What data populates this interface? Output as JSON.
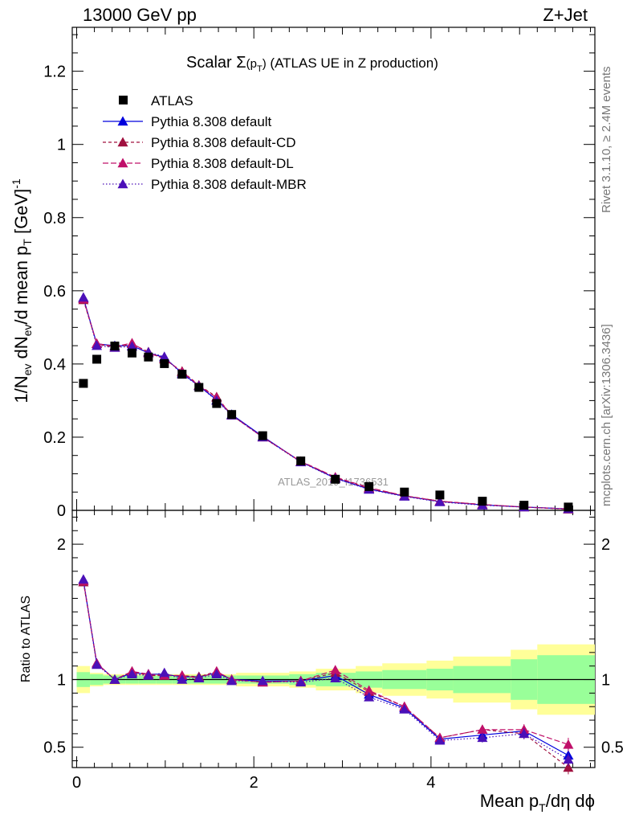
{
  "header": {
    "left": "13000 GeV pp",
    "right": "Z+Jet"
  },
  "plot_title": {
    "text_main": "Scalar ",
    "sigma": "Σ",
    "p_open": "(p",
    "p_sub": "T",
    "p_close": ")",
    "suffix": " (ATLAS UE in Z production)"
  },
  "side_labels": {
    "rivet": "Rivet 3.1.10, ≥ 2.4M events",
    "mcplots": "mcplots.cern.ch [arXiv:1306.3436]"
  },
  "watermark": "ATLAS_2019_I1736531",
  "axes": {
    "ylabel_main": {
      "p1": "1/N",
      "s1": "ev",
      "p2": " dN",
      "s2": "ev",
      "p3": "/d mean p",
      "s3": "T",
      "p4": " [GeV]",
      "sup": "-1"
    },
    "ylabel_ratio": "Ratio to ATLAS",
    "xlabel": {
      "p1": "Mean p",
      "s1": "T",
      "p2": "/dη dϕ"
    }
  },
  "legend": [
    {
      "label": "ATLAS",
      "marker": "square",
      "color": "#000000",
      "dash": ""
    },
    {
      "label": "Pythia 8.308 default",
      "marker": "triangle",
      "color": "#0000dd",
      "dash": ""
    },
    {
      "label": "Pythia 8.308 default-CD",
      "marker": "triangle",
      "color": "#a0103f",
      "dash": "4,3"
    },
    {
      "label": "Pythia 8.308 default-DL",
      "marker": "triangle",
      "color": "#c0106a",
      "dash": "7,3"
    },
    {
      "label": "Pythia 8.308 default-MBR",
      "marker": "triangle",
      "color": "#4b10b8",
      "dash": "1.5,2.5"
    }
  ],
  "chart_data": {
    "type": "scatter",
    "x_axis": {
      "range": [
        -0.05,
        5.85
      ],
      "ticks": [
        0,
        2,
        4
      ],
      "tick_labels": [
        "0",
        "2",
        "4"
      ]
    },
    "main_y_axis": {
      "range": [
        0,
        1.32
      ],
      "ticks": [
        0,
        0.2,
        0.4,
        0.6,
        0.8,
        1.0,
        1.2
      ],
      "tick_labels": [
        "0",
        "0.2",
        "0.4",
        "0.6",
        "0.8",
        "1",
        "1.2"
      ]
    },
    "ratio_y_axis": {
      "range": [
        0.35,
        2.25
      ],
      "ticks": [
        0.5,
        1,
        2
      ],
      "tick_labels": [
        "0.5",
        "1",
        "2"
      ]
    },
    "x": [
      0.076,
      0.227,
      0.43,
      0.625,
      0.81,
      0.99,
      1.19,
      1.38,
      1.58,
      1.75,
      2.1,
      2.53,
      2.92,
      3.3,
      3.7,
      4.1,
      4.58,
      5.05,
      5.55
    ],
    "bin_edges": [
      0.0,
      0.15,
      0.3,
      0.55,
      0.7,
      0.9,
      1.08,
      1.3,
      1.45,
      1.7,
      1.8,
      2.4,
      2.7,
      3.15,
      3.45,
      3.95,
      4.25,
      4.9,
      5.2,
      5.85
    ],
    "atlas": [
      0.347,
      0.413,
      0.449,
      0.43,
      0.419,
      0.401,
      0.372,
      0.336,
      0.292,
      0.262,
      0.204,
      0.135,
      0.085,
      0.065,
      0.05,
      0.042,
      0.025,
      0.014,
      0.009
    ],
    "series": [
      {
        "name": "Pythia 8.308 default",
        "values": [
          0.58,
          0.455,
          0.45,
          0.45,
          0.43,
          0.418,
          0.375,
          0.34,
          0.302,
          0.262,
          0.202,
          0.133,
          0.088,
          0.058,
          0.039,
          0.024,
          0.015,
          0.009,
          0.004
        ],
        "ratio": [
          1.73,
          1.12,
          1.0,
          1.05,
          1.04,
          1.04,
          1.02,
          1.02,
          1.05,
          1.0,
          0.99,
          0.99,
          1.03,
          0.89,
          0.79,
          0.56,
          0.59,
          0.62,
          0.44
        ]
      },
      {
        "name": "Pythia 8.308 default-CD",
        "values": [
          0.575,
          0.455,
          0.445,
          0.455,
          0.433,
          0.413,
          0.38,
          0.342,
          0.31,
          0.26,
          0.2,
          0.133,
          0.09,
          0.06,
          0.04,
          0.025,
          0.016,
          0.009,
          0.003
        ],
        "ratio": [
          1.72,
          1.12,
          1.0,
          1.06,
          1.03,
          1.03,
          1.03,
          1.02,
          1.06,
          1.0,
          0.98,
          0.99,
          1.05,
          0.91,
          0.8,
          0.57,
          0.63,
          0.6,
          0.35
        ]
      },
      {
        "name": "Pythia 8.308 default-DL",
        "values": [
          0.578,
          0.456,
          0.448,
          0.457,
          0.43,
          0.415,
          0.378,
          0.341,
          0.308,
          0.26,
          0.2,
          0.134,
          0.091,
          0.062,
          0.04,
          0.025,
          0.016,
          0.009,
          0.004
        ],
        "ratio": [
          1.73,
          1.12,
          1.0,
          1.06,
          1.04,
          1.03,
          1.03,
          1.01,
          1.06,
          1.0,
          0.98,
          0.99,
          1.07,
          0.92,
          0.8,
          0.57,
          0.63,
          0.63,
          0.52
        ]
      },
      {
        "name": "Pythia 8.308 default-MBR",
        "values": [
          0.582,
          0.45,
          0.445,
          0.448,
          0.432,
          0.42,
          0.372,
          0.34,
          0.3,
          0.26,
          0.2,
          0.132,
          0.087,
          0.057,
          0.038,
          0.023,
          0.014,
          0.009,
          0.004
        ],
        "ratio": [
          1.74,
          1.11,
          1.0,
          1.04,
          1.03,
          1.05,
          1.0,
          1.01,
          1.04,
          0.99,
          0.99,
          0.98,
          1.01,
          0.87,
          0.78,
          0.55,
          0.57,
          0.6,
          0.41
        ]
      }
    ],
    "ratio_band_stat": [
      0.055,
      0.04,
      0.03,
      0.03,
      0.03,
      0.03,
      0.03,
      0.03,
      0.03,
      0.03,
      0.03,
      0.04,
      0.05,
      0.06,
      0.07,
      0.08,
      0.1,
      0.15,
      0.18
    ],
    "ratio_band_total": [
      0.1,
      0.05,
      0.04,
      0.04,
      0.04,
      0.04,
      0.04,
      0.04,
      0.04,
      0.04,
      0.05,
      0.06,
      0.08,
      0.1,
      0.12,
      0.14,
      0.17,
      0.22,
      0.26
    ],
    "band_colors": {
      "stat": "#99ff99",
      "total": "#ffff99"
    },
    "atlas_errors_main": [
      0.005,
      0.005,
      0.005,
      0.005,
      0.005,
      0.005,
      0.005,
      0.005,
      0.005,
      0.005,
      0.004,
      0.004,
      0.004,
      0.004,
      0.003,
      0.003,
      0.002,
      0.002,
      0.002
    ],
    "mc_errors_ratio": [
      0.015,
      0.012,
      0.01,
      0.01,
      0.01,
      0.01,
      0.01,
      0.01,
      0.01,
      0.01,
      0.01,
      0.01,
      0.015,
      0.02,
      0.025,
      0.03,
      0.035,
      0.04,
      0.05
    ]
  }
}
